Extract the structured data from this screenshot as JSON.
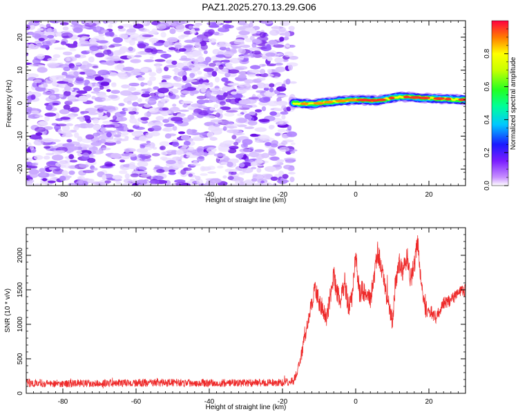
{
  "title": "PAZ1.2025.270.13.29.G06",
  "colors": {
    "snr_line": "#ee2a2a",
    "axis": "#000000",
    "background": "#ffffff"
  },
  "chart_data": [
    {
      "type": "heatmap",
      "xlabel": "Height of straight line (km)",
      "ylabel": "Frequency (Hz)",
      "xlim": [
        -90,
        30
      ],
      "ylim": [
        -25,
        25
      ],
      "xticks": [
        -80,
        -60,
        -40,
        -20,
        0,
        20
      ],
      "xtick_labels": [
        "-80",
        "-60",
        "-40",
        "-20",
        "0",
        "20"
      ],
      "yticks": [
        -20,
        -10,
        0,
        10,
        20
      ],
      "ytick_labels": [
        "-20",
        "-10",
        "0",
        "10",
        "20"
      ],
      "noise_region": {
        "x_from": -90,
        "x_to": -17,
        "description": "scattered low-amplitude purple speckle"
      },
      "signal_ridge": {
        "x_from": -17,
        "x_to": 30,
        "center_frequency": [
          [
            -17,
            0.0
          ],
          [
            -12,
            -0.3
          ],
          [
            -6,
            0.5
          ],
          [
            0,
            1.0
          ],
          [
            6,
            0.8
          ],
          [
            12,
            2.0
          ],
          [
            20,
            1.5
          ],
          [
            30,
            1.0
          ]
        ],
        "normalized_amplitude": [
          [
            -17,
            0.3
          ],
          [
            -10,
            0.5
          ],
          [
            -5,
            0.7
          ],
          [
            0,
            0.8
          ],
          [
            10,
            0.85
          ],
          [
            20,
            0.9
          ],
          [
            30,
            0.95
          ]
        ]
      },
      "colorbar": {
        "label": "Normalized spectral amplitude",
        "range": [
          0,
          1
        ],
        "ticks": [
          0.0,
          0.2,
          0.4,
          0.6,
          0.8
        ],
        "tick_labels": [
          "0.0",
          "0.2",
          "0.4",
          "0.6",
          "0.8"
        ]
      }
    },
    {
      "type": "line",
      "xlabel": "Height of straight line (km)",
      "ylabel": "SNR (10 * v/v)",
      "xlim": [
        -90,
        30
      ],
      "ylim": [
        0,
        2400
      ],
      "xticks": [
        -80,
        -60,
        -40,
        -20,
        0,
        20
      ],
      "xtick_labels": [
        "-80",
        "-60",
        "-40",
        "-20",
        "0",
        "20"
      ],
      "yticks": [
        0,
        500,
        1000,
        1500,
        2000
      ],
      "ytick_labels": [
        "0",
        "500",
        "1000",
        "1500",
        "2000"
      ],
      "series": [
        {
          "name": "SNR",
          "x": [
            -90,
            -80,
            -70,
            -60,
            -50,
            -40,
            -30,
            -20,
            -17,
            -16,
            -15,
            -14,
            -13,
            -12,
            -11,
            -10,
            -9,
            -8,
            -7,
            -6,
            -5,
            -4,
            -3,
            -2,
            -1,
            0,
            1,
            2,
            3,
            4,
            5,
            6,
            7,
            8,
            9,
            10,
            11,
            12,
            13,
            14,
            15,
            16,
            17,
            18,
            19,
            20,
            22,
            24,
            26,
            28,
            30
          ],
          "y": [
            150,
            140,
            145,
            150,
            155,
            150,
            150,
            155,
            180,
            300,
            500,
            800,
            1050,
            1300,
            1550,
            1300,
            1250,
            1050,
            1400,
            1700,
            1450,
            1350,
            1600,
            1250,
            1400,
            2000,
            1450,
            1500,
            1400,
            1350,
            1650,
            2050,
            1850,
            1500,
            1300,
            1000,
            1650,
            1900,
            1750,
            2000,
            1650,
            1850,
            2200,
            1550,
            1200,
            1200,
            1100,
            1300,
            1350,
            1450,
            1500
          ],
          "noise_amplitude": [
            120,
            110,
            110,
            115,
            115,
            115,
            110,
            110,
            120,
            150,
            180,
            200,
            220,
            260,
            300,
            280,
            260,
            260,
            300,
            340,
            300,
            300,
            320,
            300,
            300,
            320,
            300,
            300,
            300,
            300,
            320,
            340,
            320,
            300,
            300,
            260,
            300,
            320,
            320,
            340,
            300,
            320,
            340,
            260,
            220,
            200,
            180,
            180,
            180,
            180,
            180
          ]
        }
      ]
    }
  ]
}
